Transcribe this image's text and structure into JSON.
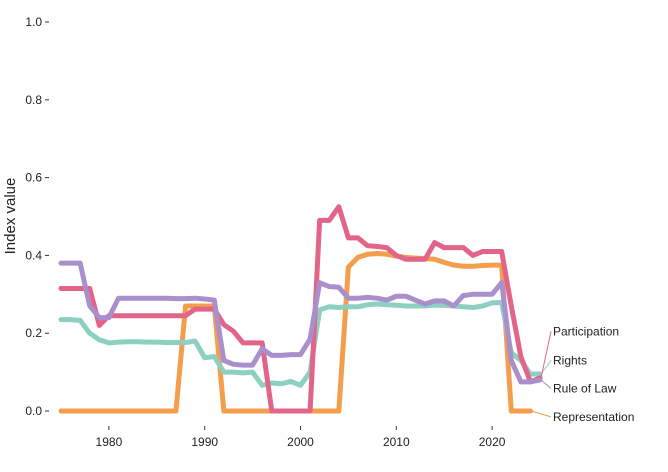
{
  "chart_data": {
    "type": "line",
    "title": "",
    "xlabel": "",
    "ylabel": "Index value",
    "xlim": [
      1975,
      2025
    ],
    "ylim": [
      0,
      1
    ],
    "grid": false,
    "legend": "direct labels at line ends (right)",
    "x_ticks": [
      1980,
      1990,
      2000,
      2010,
      2020
    ],
    "x_tick_labels": [
      "1980",
      "1990",
      "2000",
      "2010",
      "2020"
    ],
    "y_ticks": [
      0,
      0.2,
      0.4,
      0.6,
      0.8,
      1.0
    ],
    "y_tick_labels": [
      "0.0",
      "0.2",
      "0.4",
      "0.6",
      "0.8",
      "1.0"
    ],
    "series": [
      {
        "name": "Representation",
        "color": "#f49d4c",
        "label_y": -0.015,
        "points": [
          [
            1975,
            0
          ],
          [
            1976,
            0
          ],
          [
            1977,
            0
          ],
          [
            1978,
            0
          ],
          [
            1979,
            0
          ],
          [
            1980,
            0
          ],
          [
            1981,
            0
          ],
          [
            1982,
            0
          ],
          [
            1983,
            0
          ],
          [
            1984,
            0
          ],
          [
            1985,
            0
          ],
          [
            1986,
            0
          ],
          [
            1987,
            0
          ],
          [
            1988,
            0.27
          ],
          [
            1989,
            0.27
          ],
          [
            1990,
            0.27
          ],
          [
            1991,
            0.27
          ],
          [
            1992,
            0
          ],
          [
            1993,
            0
          ],
          [
            1994,
            0
          ],
          [
            1995,
            0
          ],
          [
            1996,
            0
          ],
          [
            1997,
            0
          ],
          [
            1998,
            0
          ],
          [
            1999,
            0
          ],
          [
            2000,
            0
          ],
          [
            2001,
            0
          ],
          [
            2002,
            0
          ],
          [
            2003,
            0
          ],
          [
            2004,
            0
          ],
          [
            2005,
            0.37
          ],
          [
            2006,
            0.395
          ],
          [
            2007,
            0.403
          ],
          [
            2008,
            0.405
          ],
          [
            2009,
            0.403
          ],
          [
            2010,
            0.398
          ],
          [
            2011,
            0.395
          ],
          [
            2012,
            0.393
          ],
          [
            2013,
            0.392
          ],
          [
            2014,
            0.39
          ],
          [
            2015,
            0.382
          ],
          [
            2016,
            0.375
          ],
          [
            2017,
            0.372
          ],
          [
            2018,
            0.372
          ],
          [
            2019,
            0.374
          ],
          [
            2020,
            0.375
          ],
          [
            2021,
            0.375
          ],
          [
            2022,
            0
          ],
          [
            2023,
            0
          ],
          [
            2024,
            0
          ]
        ]
      },
      {
        "name": "Rights",
        "color": "#8dd0c2",
        "label_y": 0.13,
        "points": [
          [
            1975,
            0.235
          ],
          [
            1976,
            0.235
          ],
          [
            1977,
            0.233
          ],
          [
            1978,
            0.2
          ],
          [
            1979,
            0.183
          ],
          [
            1980,
            0.175
          ],
          [
            1981,
            0.177
          ],
          [
            1982,
            0.178
          ],
          [
            1983,
            0.178
          ],
          [
            1984,
            0.177
          ],
          [
            1985,
            0.177
          ],
          [
            1986,
            0.176
          ],
          [
            1987,
            0.176
          ],
          [
            1988,
            0.176
          ],
          [
            1989,
            0.18
          ],
          [
            1990,
            0.137
          ],
          [
            1991,
            0.14
          ],
          [
            1992,
            0.1
          ],
          [
            1993,
            0.1
          ],
          [
            1994,
            0.098
          ],
          [
            1995,
            0.1
          ],
          [
            1996,
            0.066
          ],
          [
            1997,
            0.072
          ],
          [
            1998,
            0.07
          ],
          [
            1999,
            0.076
          ],
          [
            2000,
            0.066
          ],
          [
            2001,
            0.1
          ],
          [
            2002,
            0.26
          ],
          [
            2003,
            0.268
          ],
          [
            2004,
            0.266
          ],
          [
            2005,
            0.268
          ],
          [
            2006,
            0.268
          ],
          [
            2007,
            0.273
          ],
          [
            2008,
            0.275
          ],
          [
            2009,
            0.273
          ],
          [
            2010,
            0.272
          ],
          [
            2011,
            0.27
          ],
          [
            2012,
            0.27
          ],
          [
            2013,
            0.27
          ],
          [
            2014,
            0.272
          ],
          [
            2015,
            0.272
          ],
          [
            2016,
            0.27
          ],
          [
            2017,
            0.268
          ],
          [
            2018,
            0.266
          ],
          [
            2019,
            0.27
          ],
          [
            2020,
            0.278
          ],
          [
            2021,
            0.279
          ],
          [
            2022,
            0.15
          ],
          [
            2023,
            0.13
          ],
          [
            2024,
            0.095
          ],
          [
            2025,
            0.095
          ]
        ]
      },
      {
        "name": "Participation",
        "color": "#e26489",
        "label_y": 0.205,
        "points": [
          [
            1975,
            0.315
          ],
          [
            1976,
            0.315
          ],
          [
            1977,
            0.315
          ],
          [
            1978,
            0.315
          ],
          [
            1979,
            0.22
          ],
          [
            1980,
            0.245
          ],
          [
            1981,
            0.245
          ],
          [
            1982,
            0.245
          ],
          [
            1983,
            0.245
          ],
          [
            1984,
            0.245
          ],
          [
            1985,
            0.245
          ],
          [
            1986,
            0.245
          ],
          [
            1987,
            0.245
          ],
          [
            1988,
            0.245
          ],
          [
            1989,
            0.262
          ],
          [
            1990,
            0.262
          ],
          [
            1991,
            0.262
          ],
          [
            1992,
            0.222
          ],
          [
            1993,
            0.205
          ],
          [
            1994,
            0.175
          ],
          [
            1995,
            0.175
          ],
          [
            1996,
            0.175
          ],
          [
            1997,
            0
          ],
          [
            1998,
            0
          ],
          [
            1999,
            0
          ],
          [
            2000,
            0
          ],
          [
            2001,
            0
          ],
          [
            2002,
            0.49
          ],
          [
            2003,
            0.49
          ],
          [
            2004,
            0.525
          ],
          [
            2005,
            0.445
          ],
          [
            2006,
            0.445
          ],
          [
            2007,
            0.425
          ],
          [
            2008,
            0.423
          ],
          [
            2009,
            0.42
          ],
          [
            2010,
            0.4
          ],
          [
            2011,
            0.39
          ],
          [
            2012,
            0.39
          ],
          [
            2013,
            0.39
          ],
          [
            2014,
            0.433
          ],
          [
            2015,
            0.42
          ],
          [
            2016,
            0.42
          ],
          [
            2017,
            0.42
          ],
          [
            2018,
            0.4
          ],
          [
            2019,
            0.41
          ],
          [
            2020,
            0.41
          ],
          [
            2021,
            0.41
          ],
          [
            2022,
            0.27
          ],
          [
            2023,
            0.14
          ],
          [
            2024,
            0.075
          ],
          [
            2025,
            0.085
          ]
        ]
      },
      {
        "name": "Rule of Law",
        "color": "#a98fcb",
        "label_y": 0.058,
        "points": [
          [
            1975,
            0.38
          ],
          [
            1976,
            0.38
          ],
          [
            1977,
            0.38
          ],
          [
            1978,
            0.27
          ],
          [
            1979,
            0.24
          ],
          [
            1980,
            0.24
          ],
          [
            1981,
            0.29
          ],
          [
            1982,
            0.29
          ],
          [
            1983,
            0.29
          ],
          [
            1984,
            0.29
          ],
          [
            1985,
            0.29
          ],
          [
            1986,
            0.29
          ],
          [
            1987,
            0.289
          ],
          [
            1988,
            0.289
          ],
          [
            1989,
            0.29
          ],
          [
            1990,
            0.288
          ],
          [
            1991,
            0.285
          ],
          [
            1992,
            0.13
          ],
          [
            1993,
            0.12
          ],
          [
            1994,
            0.118
          ],
          [
            1995,
            0.118
          ],
          [
            1996,
            0.16
          ],
          [
            1997,
            0.143
          ],
          [
            1998,
            0.143
          ],
          [
            1999,
            0.145
          ],
          [
            2000,
            0.145
          ],
          [
            2001,
            0.185
          ],
          [
            2002,
            0.33
          ],
          [
            2003,
            0.32
          ],
          [
            2004,
            0.318
          ],
          [
            2005,
            0.29
          ],
          [
            2006,
            0.29
          ],
          [
            2007,
            0.292
          ],
          [
            2008,
            0.29
          ],
          [
            2009,
            0.285
          ],
          [
            2010,
            0.295
          ],
          [
            2011,
            0.295
          ],
          [
            2012,
            0.285
          ],
          [
            2013,
            0.275
          ],
          [
            2014,
            0.283
          ],
          [
            2015,
            0.283
          ],
          [
            2016,
            0.27
          ],
          [
            2017,
            0.297
          ],
          [
            2018,
            0.3
          ],
          [
            2019,
            0.3
          ],
          [
            2020,
            0.3
          ],
          [
            2021,
            0.33
          ],
          [
            2022,
            0.13
          ],
          [
            2023,
            0.075
          ],
          [
            2024,
            0.075
          ],
          [
            2025,
            0.08
          ]
        ]
      }
    ]
  }
}
